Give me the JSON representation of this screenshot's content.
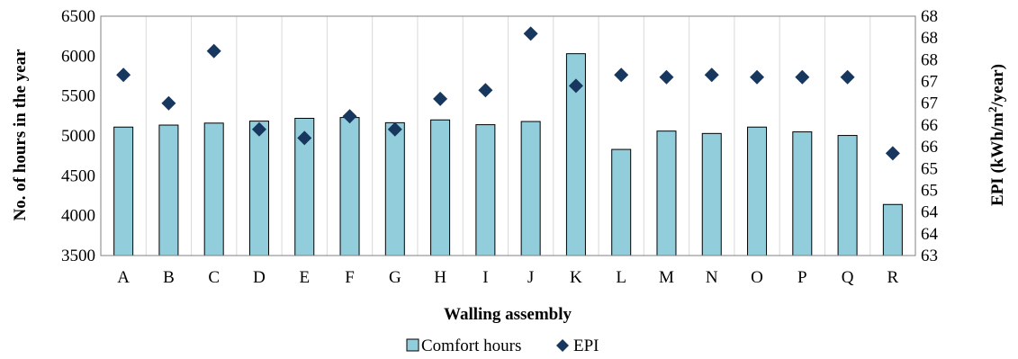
{
  "chart_data": {
    "type": "bar",
    "categories": [
      "A",
      "B",
      "C",
      "D",
      "E",
      "F",
      "G",
      "H",
      "I",
      "J",
      "K",
      "L",
      "M",
      "N",
      "O",
      "P",
      "Q",
      "R"
    ],
    "xlabel": "Walling assembly",
    "ylabel": "No. of hours in the year",
    "y2label_main": "EPI (kWh/m",
    "y2label_sup": "2",
    "y2label_end": "/year)",
    "ylim": [
      3500,
      6500
    ],
    "yticks": [
      3500,
      4000,
      4500,
      5000,
      5500,
      6000,
      6500
    ],
    "y2lim": [
      63,
      68.5
    ],
    "y2ticks": [
      63,
      63.5,
      64,
      64.5,
      65,
      65.5,
      66,
      66.5,
      67,
      67.5,
      68,
      68.5
    ],
    "y2tick_labels": [
      "63",
      "64",
      "64",
      "65",
      "65",
      "66",
      "66",
      "67",
      "67",
      "68",
      "68",
      "68"
    ],
    "grid": "vertical",
    "legend_position": "bottom",
    "series": [
      {
        "name": "Comfort hours",
        "kind": "bar",
        "axis": "left",
        "color": "#92CDDC",
        "values": [
          5110,
          5135,
          5160,
          5185,
          5220,
          5230,
          5165,
          5200,
          5140,
          5180,
          6030,
          4830,
          5060,
          5030,
          5110,
          5050,
          5005,
          4140
        ]
      },
      {
        "name": "EPI",
        "kind": "marker",
        "axis": "right",
        "color": "#17375E",
        "values": [
          67.15,
          66.5,
          67.7,
          65.9,
          65.7,
          66.2,
          65.9,
          66.6,
          66.8,
          68.1,
          66.9,
          67.15,
          67.1,
          67.15,
          67.1,
          67.1,
          67.1,
          65.35
        ]
      }
    ]
  }
}
